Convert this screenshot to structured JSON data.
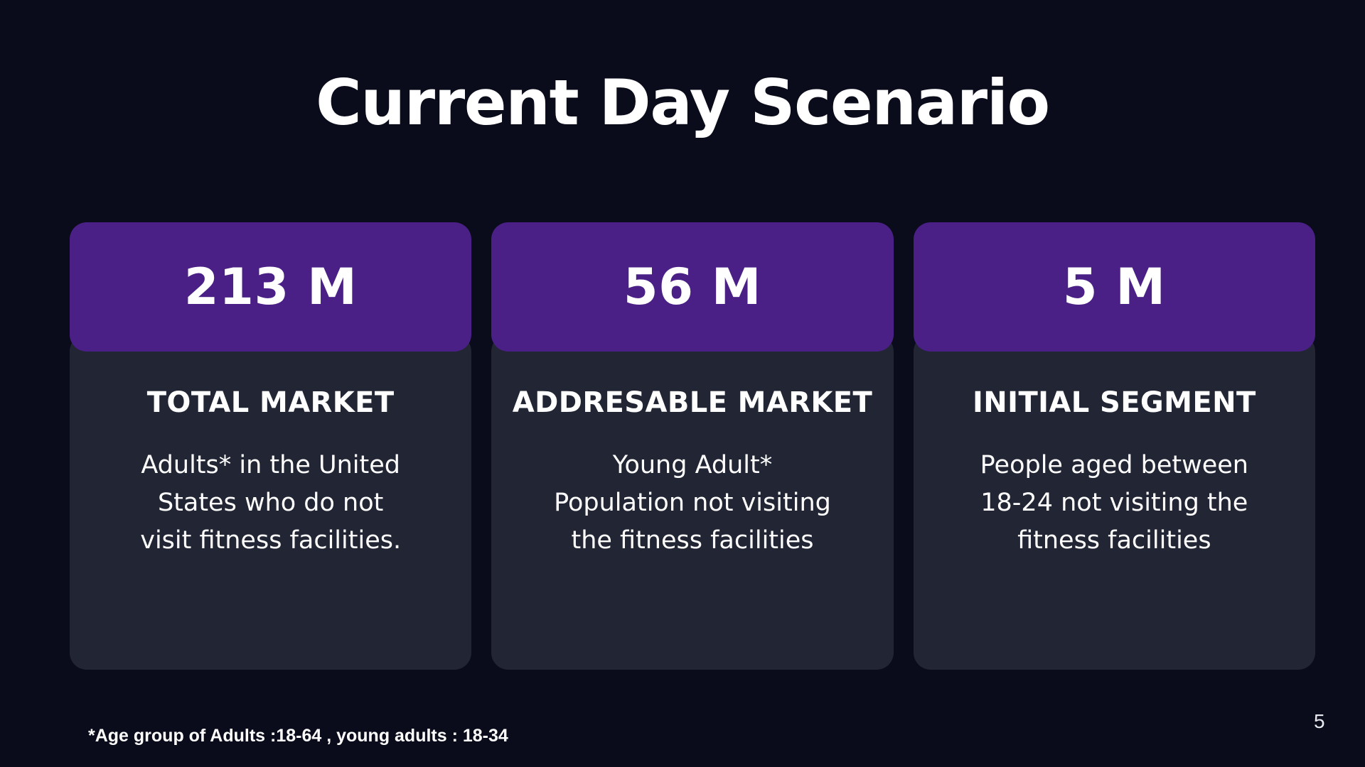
{
  "slide": {
    "title": "Current Day Scenario",
    "page_number": "5",
    "footnote": "*Age group of Adults :18-64 , young adults : 18-34",
    "cards": [
      {
        "value": "213 M",
        "heading": "TOTAL MARKET",
        "description": "Adults* in the United States who do not visit fitness facilities.",
        "lines": [
          "Adults* in the United",
          "States who do not",
          "visit fitness facilities."
        ]
      },
      {
        "value": "56 M",
        "heading": "ADDRESABLE MARKET",
        "description": "Young Adult* Population not visiting the fitness facilities",
        "lines": [
          "Young Adult*",
          "Population not visiting",
          "the fitness facilities"
        ]
      },
      {
        "value": "5 M",
        "heading": "INITIAL SEGMENT",
        "description": "People aged between 18-24 not visiting the fitness facilities",
        "lines": [
          "People aged between",
          "18-24 not visiting the",
          "fitness facilities"
        ]
      }
    ],
    "colors": {
      "background": "#0a0c1b",
      "header_purple": "#4b2086",
      "card_body": "#222534",
      "text_white": "#ffffff"
    }
  }
}
